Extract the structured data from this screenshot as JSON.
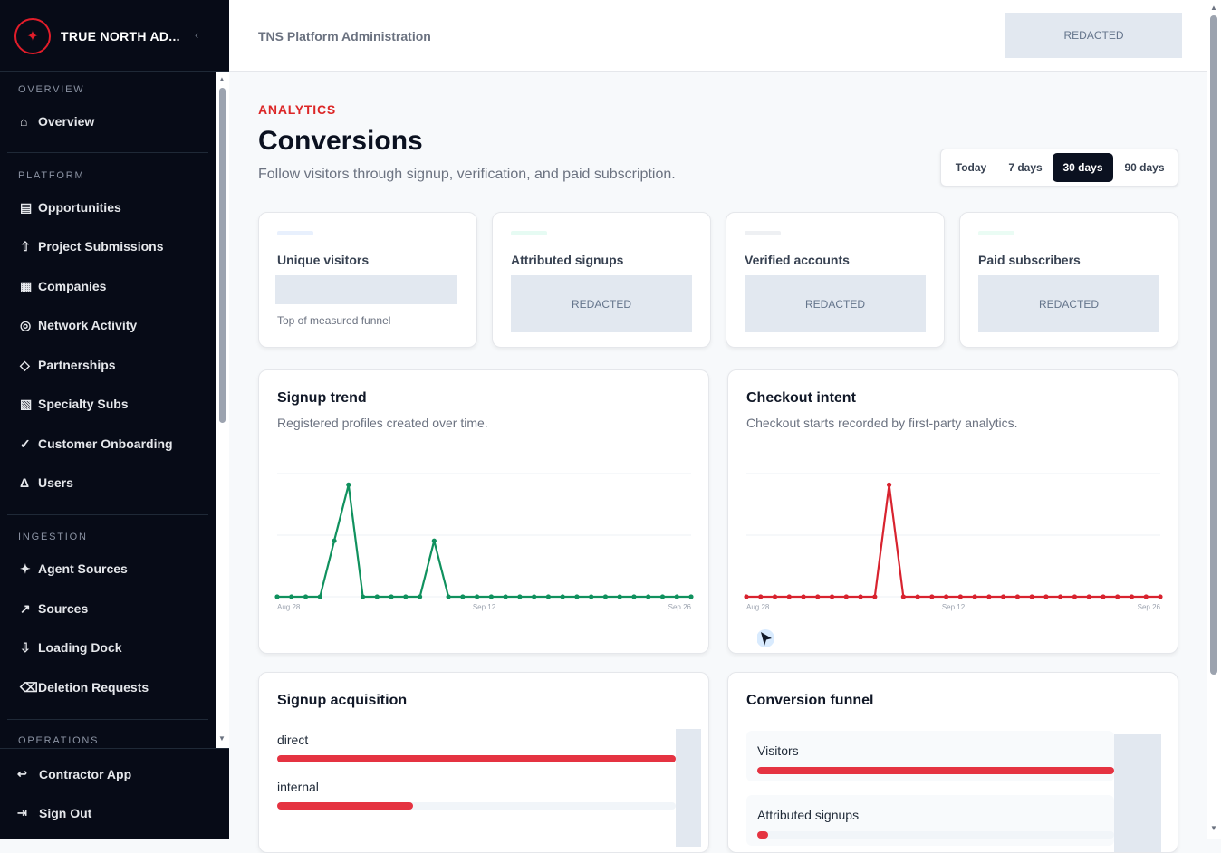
{
  "brand": {
    "name": "TRUE NORTH AD...",
    "logo_icon": "compass-star-icon",
    "collapse_icon": "chevron-left-icon"
  },
  "sidebar": {
    "sections": [
      {
        "label": "OVERVIEW",
        "items": [
          {
            "label": "Overview",
            "icon": "home-icon"
          }
        ]
      },
      {
        "label": "PLATFORM",
        "items": [
          {
            "label": "Opportunities",
            "icon": "list-icon"
          },
          {
            "label": "Project Submissions",
            "icon": "upload-icon"
          },
          {
            "label": "Companies",
            "icon": "grid-icon"
          },
          {
            "label": "Network Activity",
            "icon": "target-icon"
          },
          {
            "label": "Partnerships",
            "icon": "diamond-icon"
          },
          {
            "label": "Specialty Subs",
            "icon": "hatch-icon"
          },
          {
            "label": "Customer Onboarding",
            "icon": "check-icon"
          },
          {
            "label": "Users",
            "icon": "user-icon"
          }
        ]
      },
      {
        "label": "INGESTION",
        "items": [
          {
            "label": "Agent Sources",
            "icon": "sparkle-icon"
          },
          {
            "label": "Sources",
            "icon": "arrow-up-right-icon"
          },
          {
            "label": "Loading Dock",
            "icon": "arrow-down-icon"
          },
          {
            "label": "Deletion Requests",
            "icon": "delete-icon"
          }
        ]
      },
      {
        "label": "OPERATIONS",
        "items": []
      }
    ],
    "footer": [
      {
        "label": "Contractor App",
        "icon": "return-icon"
      },
      {
        "label": "Sign Out",
        "icon": "sign-out-icon"
      }
    ]
  },
  "topbar": {
    "title": "TNS Platform Administration",
    "redacted": "REDACTED"
  },
  "page": {
    "eyebrow": "ANALYTICS",
    "title": "Conversions",
    "subtitle": "Follow visitors through signup, verification, and paid subscription."
  },
  "range": {
    "options": [
      "Today",
      "7 days",
      "30 days",
      "90 days"
    ],
    "selected": "30 days"
  },
  "kpis": [
    {
      "label": "Unique visitors",
      "note": "Top of measured funnel",
      "accent": "#e8f0fd"
    },
    {
      "label": "Attributed signups",
      "value": "REDACTED",
      "accent": "#e6fbf3"
    },
    {
      "label": "Verified accounts",
      "value": "REDACTED",
      "accent": "#eef0f3"
    },
    {
      "label": "Paid subscribers",
      "value": "REDACTED",
      "accent": "#eafcf4"
    }
  ],
  "signup_trend": {
    "title": "Signup trend",
    "subtitle": "Registered profiles created over time."
  },
  "checkout_intent": {
    "title": "Checkout intent",
    "subtitle": "Checkout starts recorded by first-party analytics."
  },
  "chart_data": [
    {
      "type": "line",
      "x_ticks": [
        "Aug 28",
        "Sep 12",
        "Sep 26"
      ],
      "series": [
        {
          "color": "#10915e",
          "values": [
            0,
            0,
            0,
            0,
            1,
            2,
            0,
            0,
            0,
            0,
            0,
            1,
            0,
            0,
            0,
            0,
            0,
            0,
            0,
            0,
            0,
            0,
            0,
            0,
            0,
            0,
            0,
            0,
            0,
            0
          ]
        }
      ],
      "ylim": [
        0,
        2.2
      ],
      "grid": true
    },
    {
      "type": "line",
      "x_ticks": [
        "Aug 28",
        "Sep 12",
        "Sep 26"
      ],
      "series": [
        {
          "color": "#d8232f",
          "values": [
            0,
            0,
            0,
            0,
            0,
            0,
            0,
            0,
            0,
            0,
            1,
            0,
            0,
            0,
            0,
            0,
            0,
            0,
            0,
            0,
            0,
            0,
            0,
            0,
            0,
            0,
            0,
            0,
            0,
            0
          ]
        }
      ],
      "ylim": [
        0,
        1.1
      ],
      "grid": true
    }
  ],
  "acquisition": {
    "title": "Signup acquisition",
    "rows": [
      {
        "label": "direct",
        "fraction": 1.0
      },
      {
        "label": "internal",
        "fraction": 0.34
      }
    ]
  },
  "funnel": {
    "title": "Conversion funnel",
    "rows": [
      {
        "label": "Visitors",
        "fraction": 1.0
      },
      {
        "label": "Attributed signups",
        "fraction": 0.03
      }
    ]
  }
}
